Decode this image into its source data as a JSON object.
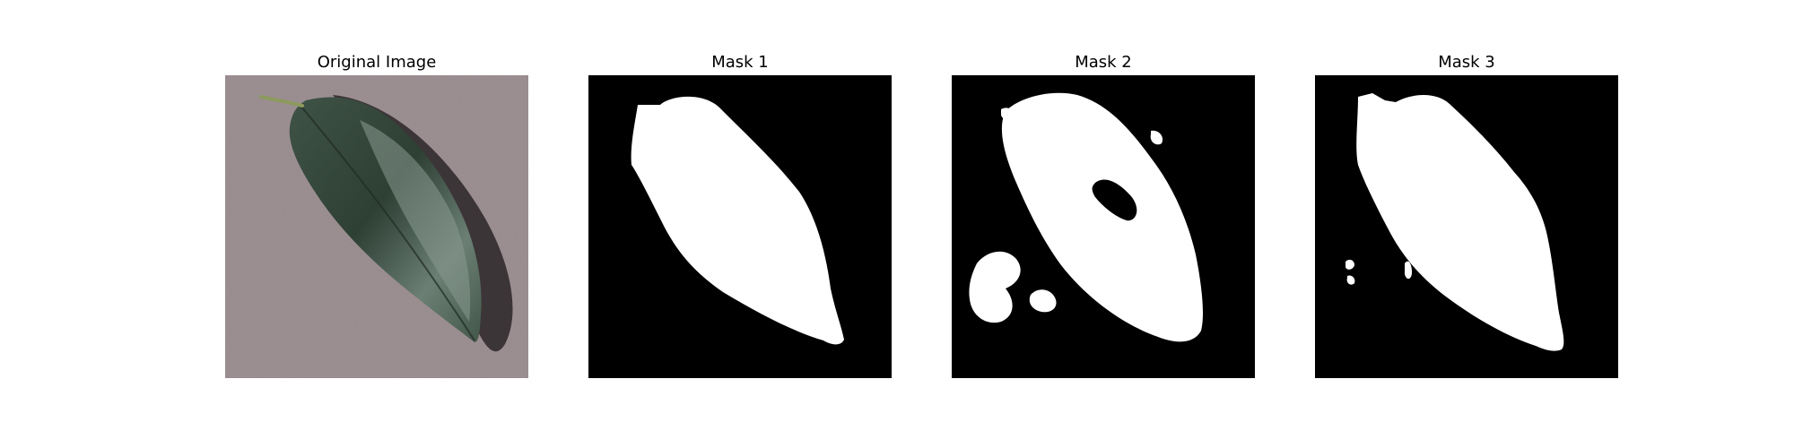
{
  "panels": [
    {
      "title": "Original Image"
    },
    {
      "title": "Mask 1"
    },
    {
      "title": "Mask 2"
    },
    {
      "title": "Mask 3"
    }
  ],
  "colors": {
    "background": "#ffffff",
    "mask_background": "#000000",
    "mask_foreground": "#ffffff",
    "concrete": "#9c8f93",
    "leaf_dark": "#2f4336",
    "leaf_light": "#71827a",
    "shadow": "#2b2628"
  }
}
